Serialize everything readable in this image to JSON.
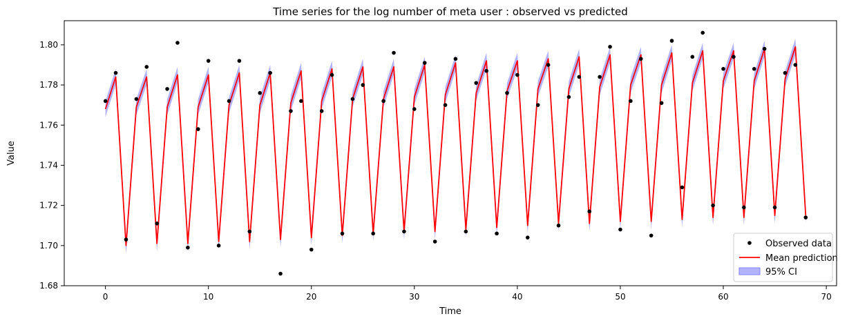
{
  "chart_data": {
    "type": "line",
    "title": "Time series for the log number of meta user : observed vs predicted",
    "xlabel": "Time",
    "ylabel": "Value",
    "xlim": [
      -4,
      71
    ],
    "ylim": [
      1.68,
      1.812
    ],
    "xticks": [
      0,
      10,
      20,
      30,
      40,
      50,
      60,
      70
    ],
    "yticks": [
      1.68,
      1.7,
      1.72,
      1.74,
      1.76,
      1.78,
      1.8
    ],
    "ytick_labels": [
      "1.68",
      "1.70",
      "1.72",
      "1.74",
      "1.76",
      "1.78",
      "1.80"
    ],
    "legend_position": "lower-right",
    "series": [
      {
        "name": "Observed data",
        "kind": "scatter",
        "color": "#000000",
        "x": [
          0,
          1,
          2,
          3,
          4,
          5,
          6,
          7,
          8,
          9,
          10,
          11,
          12,
          13,
          14,
          15,
          16,
          17,
          18,
          19,
          20,
          21,
          22,
          23,
          24,
          25,
          26,
          27,
          28,
          29,
          30,
          31,
          32,
          33,
          34,
          35,
          36,
          37,
          38,
          39,
          40,
          41,
          42,
          43,
          44,
          45,
          46,
          47,
          48,
          49,
          50,
          51,
          52,
          53,
          54,
          55,
          56,
          57,
          58,
          59,
          60,
          61,
          62,
          63,
          64,
          65,
          66,
          67,
          68
        ],
        "y": [
          1.772,
          1.786,
          1.703,
          1.773,
          1.789,
          1.711,
          1.778,
          1.801,
          1.699,
          1.758,
          1.792,
          1.7,
          1.772,
          1.792,
          1.707,
          1.776,
          1.786,
          1.686,
          1.767,
          1.772,
          1.698,
          1.767,
          1.785,
          1.706,
          1.773,
          1.78,
          1.706,
          1.772,
          1.796,
          1.707,
          1.768,
          1.791,
          1.702,
          1.77,
          1.793,
          1.707,
          1.781,
          1.787,
          1.706,
          1.776,
          1.785,
          1.704,
          1.77,
          1.79,
          1.71,
          1.774,
          1.784,
          1.717,
          1.784,
          1.799,
          1.708,
          1.772,
          1.793,
          1.705,
          1.771,
          1.802,
          1.729,
          1.794,
          1.806,
          1.72,
          1.788,
          1.794,
          1.719,
          1.788,
          1.798,
          1.719,
          1.786,
          1.79,
          1.714
        ]
      },
      {
        "name": "Mean prediction",
        "kind": "line",
        "color": "#ff0000",
        "x": [
          0,
          1,
          2,
          3,
          4,
          5,
          6,
          7,
          8,
          9,
          10,
          11,
          12,
          13,
          14,
          15,
          16,
          17,
          18,
          19,
          20,
          21,
          22,
          23,
          24,
          25,
          26,
          27,
          28,
          29,
          30,
          31,
          32,
          33,
          34,
          35,
          36,
          37,
          38,
          39,
          40,
          41,
          42,
          43,
          44,
          45,
          46,
          47,
          48,
          49,
          50,
          51,
          52,
          53,
          54,
          55,
          56,
          57,
          58,
          59,
          60,
          61,
          62,
          63,
          64,
          65,
          66,
          67,
          68
        ],
        "y": [
          1.768,
          1.784,
          1.7,
          1.769,
          1.784,
          1.701,
          1.769,
          1.785,
          1.701,
          1.769,
          1.785,
          1.702,
          1.77,
          1.786,
          1.702,
          1.77,
          1.786,
          1.703,
          1.771,
          1.787,
          1.704,
          1.772,
          1.788,
          1.705,
          1.773,
          1.789,
          1.706,
          1.773,
          1.789,
          1.707,
          1.774,
          1.79,
          1.707,
          1.775,
          1.791,
          1.708,
          1.776,
          1.792,
          1.709,
          1.777,
          1.792,
          1.71,
          1.778,
          1.793,
          1.711,
          1.778,
          1.794,
          1.711,
          1.779,
          1.795,
          1.712,
          1.78,
          1.795,
          1.712,
          1.78,
          1.796,
          1.713,
          1.781,
          1.797,
          1.714,
          1.782,
          1.797,
          1.714,
          1.782,
          1.798,
          1.715,
          1.783,
          1.799,
          1.715
        ]
      },
      {
        "name": "95% CI",
        "kind": "band",
        "color": "#8080ff",
        "half_width": 0.004
      }
    ]
  }
}
